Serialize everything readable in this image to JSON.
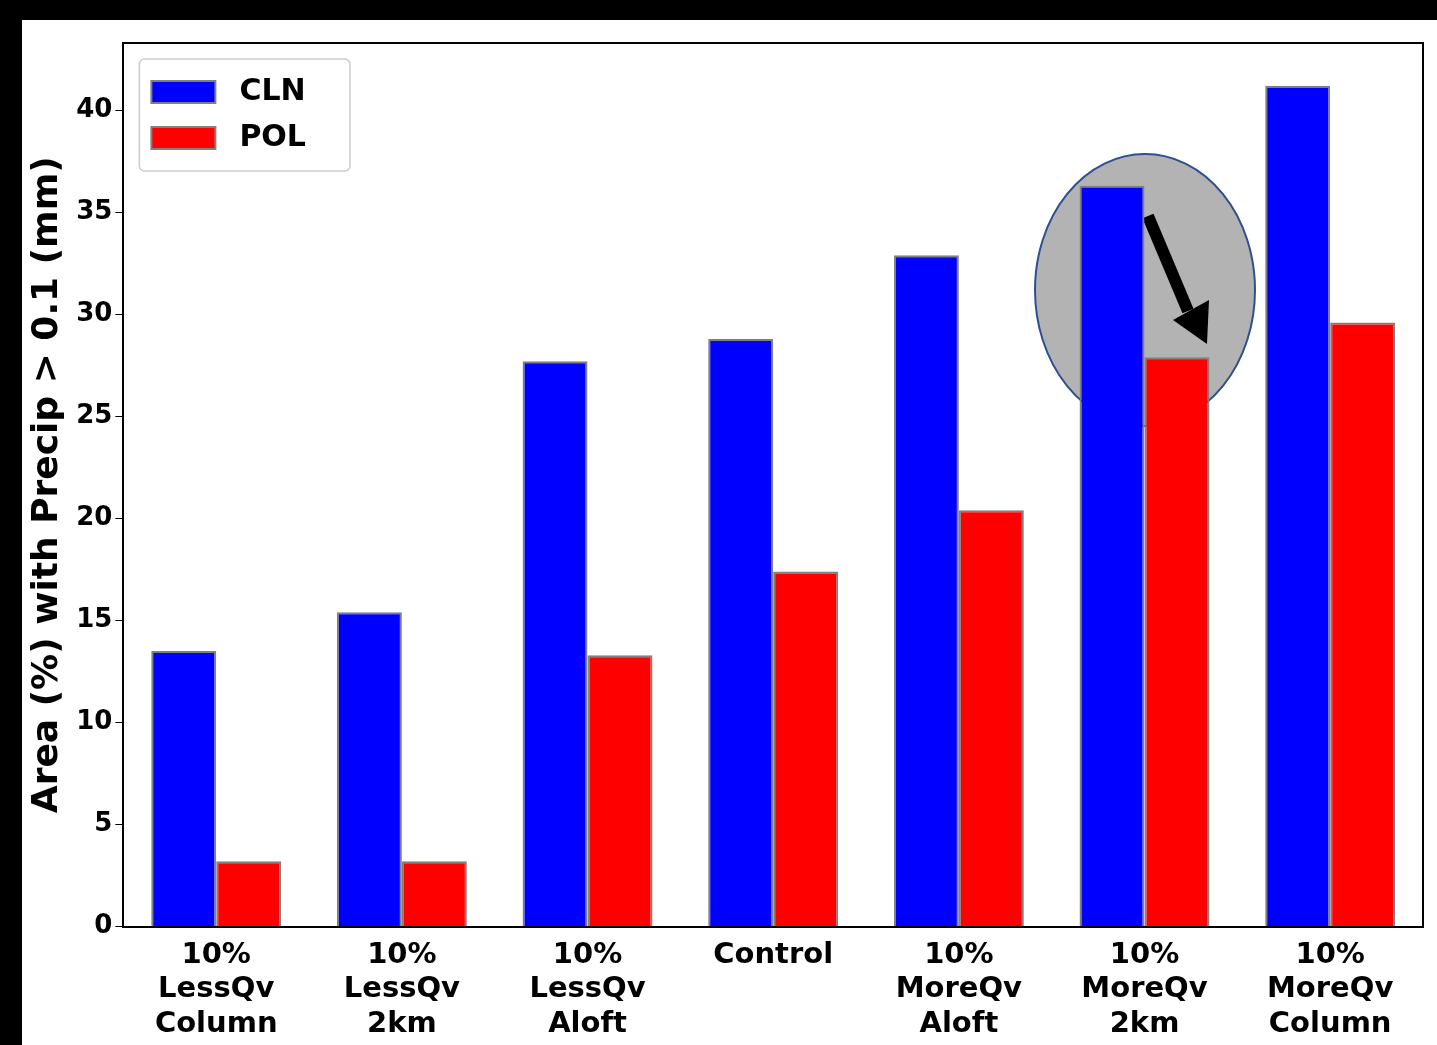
{
  "chart_data": {
    "type": "bar",
    "ylabel": "Area (%) with Precip > 0.1 (mm)",
    "categories": [
      "10%\nLessQv\nColumn",
      "10%\nLessQv\n2km",
      "10%\nLessQv\nAloft",
      "Control",
      "10%\nMoreQv\nAloft",
      "10%\nMoreQv\n2km",
      "10%\nMoreQv\nColumn"
    ],
    "series": [
      {
        "name": "CLN",
        "color": "#0000ff",
        "values": [
          13.5,
          15.4,
          27.7,
          28.8,
          32.9,
          36.3,
          41.2
        ]
      },
      {
        "name": "POL",
        "color": "#ff0000",
        "values": [
          3.2,
          3.2,
          13.3,
          17.4,
          20.4,
          27.9,
          29.6
        ]
      }
    ],
    "ylim": [
      0,
      43.3
    ],
    "yticks": [
      0,
      5,
      10,
      15,
      20,
      25,
      30,
      35,
      40
    ],
    "grid": false,
    "legend": "top left"
  }
}
